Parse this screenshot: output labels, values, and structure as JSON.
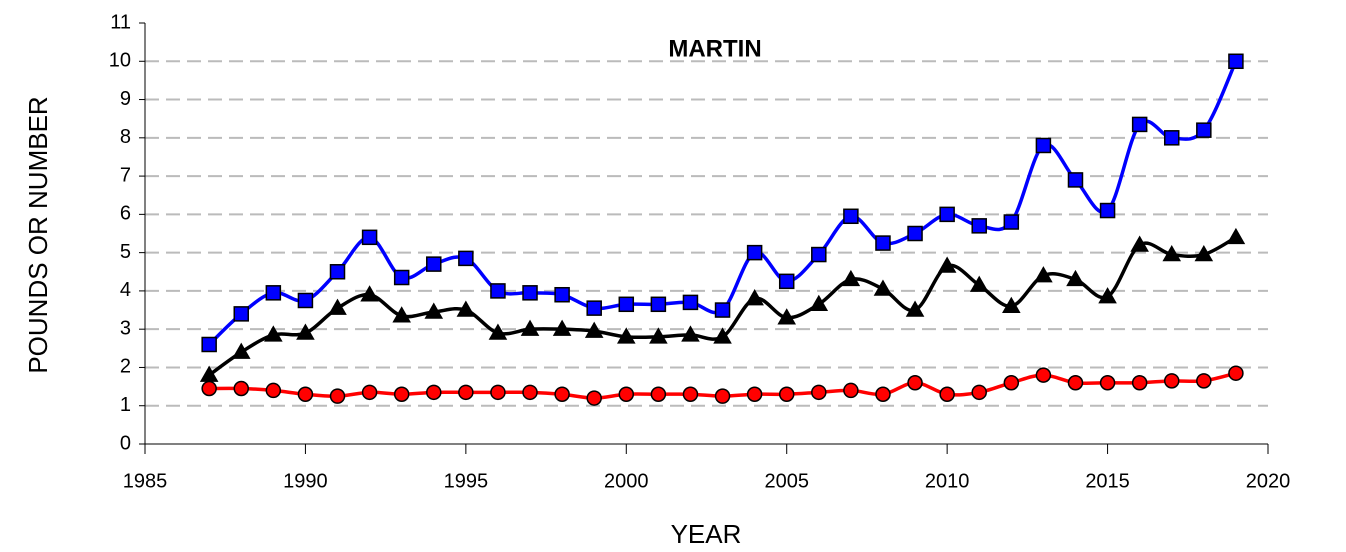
{
  "chart_data": {
    "type": "line",
    "title": "MARTIN",
    "x_label": "YEAR",
    "y_label": "POUNDS OR NUMBER",
    "x": [
      1987,
      1988,
      1989,
      1990,
      1991,
      1992,
      1993,
      1994,
      1995,
      1996,
      1997,
      1998,
      1999,
      2000,
      2001,
      2002,
      2003,
      2004,
      2005,
      2006,
      2007,
      2008,
      2009,
      2010,
      2011,
      2012,
      2013,
      2014,
      2015,
      2016,
      2017,
      2018,
      2019
    ],
    "series": [
      {
        "color": "#0000ff",
        "marker": "square",
        "values": [
          2.6,
          3.4,
          3.95,
          3.75,
          4.5,
          5.4,
          4.35,
          4.7,
          4.85,
          4.0,
          3.95,
          3.9,
          3.55,
          3.65,
          3.65,
          3.7,
          3.5,
          5.0,
          4.25,
          4.95,
          5.95,
          5.25,
          5.5,
          6.0,
          5.7,
          5.8,
          7.8,
          6.9,
          6.1,
          8.35,
          8.0,
          8.2,
          10.0
        ]
      },
      {
        "color": "#000000",
        "marker": "triangle",
        "values": [
          1.8,
          2.4,
          2.85,
          2.9,
          3.55,
          3.9,
          3.35,
          3.45,
          3.5,
          2.9,
          3.0,
          3.0,
          2.95,
          2.8,
          2.8,
          2.85,
          2.8,
          3.8,
          3.3,
          3.65,
          4.3,
          4.05,
          3.5,
          4.65,
          4.15,
          3.6,
          4.4,
          4.3,
          3.85,
          5.2,
          4.95,
          4.95,
          5.4
        ]
      },
      {
        "color": "#ff0000",
        "marker": "circle",
        "values": [
          1.45,
          1.45,
          1.4,
          1.3,
          1.25,
          1.35,
          1.3,
          1.35,
          1.35,
          1.35,
          1.35,
          1.3,
          1.2,
          1.3,
          1.3,
          1.3,
          1.25,
          1.3,
          1.3,
          1.35,
          1.4,
          1.3,
          1.6,
          1.3,
          1.35,
          1.6,
          1.8,
          1.6,
          1.6,
          1.6,
          1.65,
          1.65,
          1.85
        ]
      }
    ],
    "xlim": [
      1985,
      2020
    ],
    "xticks": [
      1985,
      1990,
      1995,
      2000,
      2005,
      2010,
      2015,
      2020
    ],
    "ylim": [
      0,
      11
    ],
    "yticks": [
      0,
      1,
      2,
      3,
      4,
      5,
      6,
      7,
      8,
      9,
      10,
      11
    ],
    "grid": true
  }
}
